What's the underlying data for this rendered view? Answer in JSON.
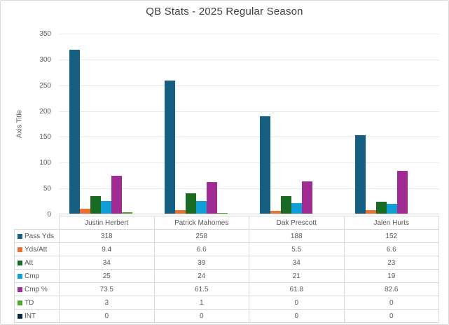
{
  "window": {
    "background": "#FFFFFF",
    "border_color": "#D9D9D9"
  },
  "chart_data": {
    "type": "bar",
    "title": "QB Stats - 2025 Regular Season",
    "xlabel": "",
    "ylabel": "Axis Title",
    "ylim": [
      0,
      350
    ],
    "yticks": [
      0,
      50,
      100,
      150,
      200,
      250,
      300,
      350
    ],
    "grid": true,
    "legend_position": "data-table-left-column",
    "categories": [
      "Justin Herbert",
      "Patrick Mahomes",
      "Dak Prescott",
      "Jalen Hurts"
    ],
    "series": [
      {
        "name": "Pass Yds",
        "color": "#156082",
        "values": [
          318,
          258,
          188,
          152
        ]
      },
      {
        "name": "Yds/Att",
        "color": "#E97132",
        "values": [
          9.4,
          6.6,
          5.5,
          6.6
        ]
      },
      {
        "name": "Att",
        "color": "#196B24",
        "values": [
          34,
          39,
          34,
          23
        ]
      },
      {
        "name": "Cmp",
        "color": "#0F9ED5",
        "values": [
          25,
          24,
          21,
          19
        ]
      },
      {
        "name": "Cmp %",
        "color": "#A02B93",
        "values": [
          73.5,
          61.5,
          61.8,
          82.6
        ]
      },
      {
        "name": "TD",
        "color": "#4EA72E",
        "values": [
          3,
          1,
          0,
          0
        ]
      },
      {
        "name": "INT",
        "color": "#0E2841",
        "values": [
          0,
          0,
          0,
          0
        ]
      }
    ],
    "styles": {
      "title_color": "#404040",
      "text_color": "#595959",
      "gridline_color": "#E6E6E6",
      "axis_line_color": "#D9D9D9",
      "table_border_color": "#D9D9D9"
    }
  }
}
